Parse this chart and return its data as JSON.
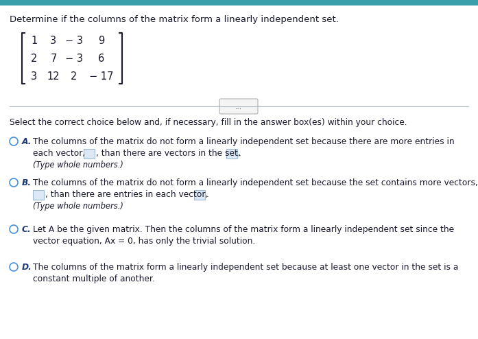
{
  "title": "Determine if the columns of the matrix form a linearly independent set.",
  "header_bar_color": "#3b9eab",
  "bg_color": "#ffffff",
  "text_color": "#1a1a2e",
  "blue_text_color": "#1a3a7a",
  "matrix": [
    [
      "1",
      "3",
      "− 3",
      "9"
    ],
    [
      "2",
      "7",
      "− 3",
      "6"
    ],
    [
      "3",
      "12",
      "2",
      "− 17"
    ]
  ],
  "select_text": "Select the correct choice below and, if necessary, fill in the answer box(es) within your choice.",
  "choice_A_label": "A.",
  "choice_A_line1": "The columns of the matrix do not form a linearly independent set because there are more entries in",
  "choice_A_line2a": "each vector,",
  "choice_A_line2b": ", than there are vectors in the set,",
  "choice_A_line2c": ".",
  "choice_A_line3": "(Type whole numbers.)",
  "choice_B_label": "B.",
  "choice_B_line1": "The columns of the matrix do not form a linearly independent set because the set contains more vectors,",
  "choice_B_line2a": ", than there are entries in each vector,",
  "choice_B_line2b": ".",
  "choice_B_line3": "(Type whole numbers.)",
  "choice_C_label": "C.",
  "choice_C_line1": "Let A be the given matrix. Then the columns of the matrix form a linearly independent set since the",
  "choice_C_line2": "vector equation, Ax = 0, has only the trivial solution.",
  "choice_D_label": "D.",
  "choice_D_line1": "The columns of the matrix form a linearly independent set because at least one vector in the set is a",
  "choice_D_line2": "constant multiple of another.",
  "font_size_title": 9.5,
  "font_size_body": 8.8,
  "font_size_matrix": 10.5,
  "circle_color": "#4a90d9",
  "box_fill": "#dce8f5",
  "box_edge": "#a0b8cc"
}
